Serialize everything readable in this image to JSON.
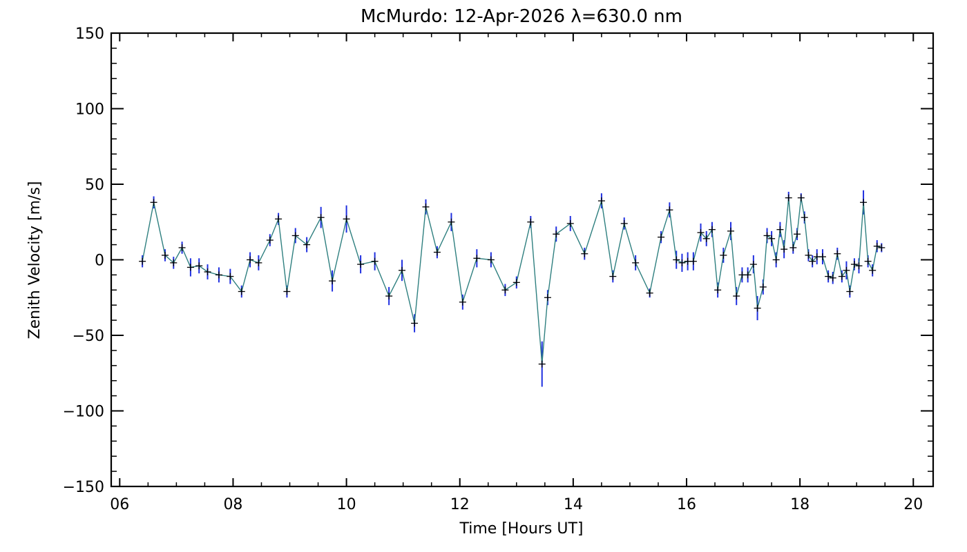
{
  "chart_data": {
    "type": "line",
    "title": "McMurdo: 12-Apr-2026 λ=630.0 nm",
    "xlabel": "Time [Hours UT]",
    "ylabel": "Zenith Velocity [m/s]",
    "xlim": [
      5.85,
      20.35
    ],
    "ylim": [
      -150,
      150
    ],
    "x_ticks": [
      6,
      8,
      10,
      12,
      14,
      16,
      18,
      20
    ],
    "x_tick_labels": [
      "06",
      "08",
      "10",
      "12",
      "14",
      "16",
      "18",
      "20"
    ],
    "y_ticks": [
      -150,
      -100,
      -50,
      0,
      50,
      100,
      150
    ],
    "y_tick_labels": [
      "−150",
      "−100",
      "−50",
      "0",
      "50",
      "100",
      "150"
    ],
    "grid": false,
    "colors": {
      "line": "#2e7f7f",
      "errorbar": "#1f2fe0",
      "marker": "#000000",
      "axis": "#000000"
    },
    "series": [
      {
        "x": [
          6.4,
          6.6,
          6.8,
          6.95,
          7.1,
          7.25,
          7.4,
          7.55,
          7.75,
          7.95,
          8.15,
          8.3,
          8.45,
          8.65,
          8.8,
          8.95,
          9.1,
          9.3,
          9.55,
          9.75,
          10.0,
          10.25,
          10.5,
          10.75,
          10.98,
          11.2,
          11.4,
          11.6,
          11.85,
          12.05,
          12.3,
          12.55,
          12.8,
          13.0,
          13.25,
          13.45,
          13.55,
          13.7,
          13.95,
          14.2,
          14.5,
          14.7,
          14.9,
          15.1,
          15.35,
          15.55,
          15.7,
          15.82,
          15.92,
          16.02,
          16.12,
          16.25,
          16.35,
          16.45,
          16.55,
          16.65,
          16.78,
          16.88,
          16.98,
          17.08,
          17.18,
          17.25,
          17.35,
          17.42,
          17.5,
          17.58,
          17.65,
          17.72,
          17.8,
          17.88,
          17.95,
          18.02,
          18.08,
          18.15,
          18.22,
          18.3,
          18.4,
          18.5,
          18.58,
          18.66,
          18.74,
          18.82,
          18.88,
          18.96,
          19.04,
          19.12,
          19.2,
          19.28,
          19.36,
          19.44
        ],
        "y": [
          -1,
          38,
          3,
          -2,
          8,
          -5,
          -4,
          -8,
          -10,
          -11,
          -21,
          0,
          -2,
          13,
          27,
          -21,
          16,
          10,
          28,
          -14,
          27,
          -3,
          -1,
          -24,
          -7,
          -42,
          35,
          5,
          25,
          -28,
          1,
          0,
          -20,
          -15,
          25,
          -69,
          -25,
          17,
          24,
          4,
          39,
          -11,
          24,
          -2,
          -22,
          15,
          33,
          0,
          -2,
          -1,
          -1,
          18,
          14,
          20,
          -20,
          3,
          19,
          -24,
          -10,
          -10,
          -3,
          -32,
          -18,
          16,
          14,
          0,
          20,
          7,
          41,
          8,
          17,
          41,
          28,
          3,
          -1,
          2,
          2,
          -11,
          -12,
          4,
          -11,
          -7,
          -21,
          -3,
          -4,
          38,
          -1,
          -7,
          9,
          8
        ],
        "err": [
          4,
          4,
          4,
          4,
          4,
          6,
          5,
          5,
          5,
          5,
          4,
          5,
          5,
          4,
          4,
          4,
          5,
          5,
          7,
          7,
          9,
          6,
          6,
          6,
          7,
          6,
          5,
          4,
          6,
          5,
          6,
          5,
          4,
          4,
          4,
          15,
          5,
          5,
          5,
          4,
          5,
          4,
          4,
          5,
          3,
          4,
          5,
          6,
          6,
          6,
          6,
          6,
          5,
          5,
          5,
          5,
          6,
          6,
          5,
          5,
          6,
          8,
          5,
          5,
          5,
          5,
          5,
          6,
          4,
          4,
          4,
          3,
          4,
          4,
          4,
          5,
          5,
          4,
          4,
          4,
          4,
          6,
          4,
          4,
          5,
          8,
          4,
          4,
          4,
          3
        ]
      }
    ]
  }
}
